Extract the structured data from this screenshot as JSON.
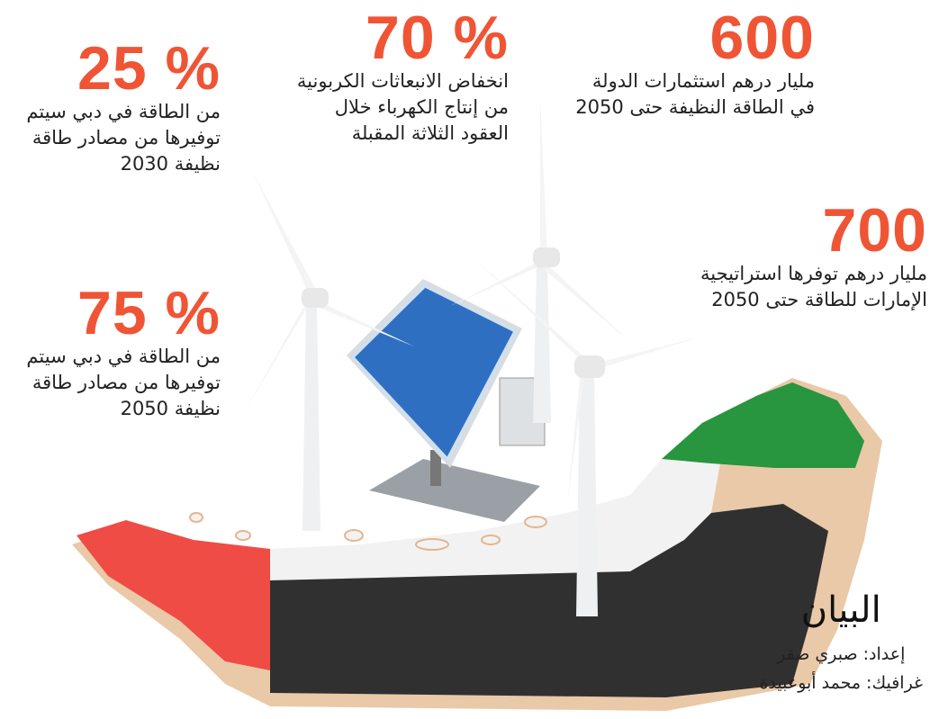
{
  "stats": [
    {
      "number": "% 25",
      "lines": [
        "من الطاقة في دبي سيتم",
        "توفيرها من مصادر طاقة",
        "نظيفة 2030"
      ]
    },
    {
      "number": "% 70",
      "lines": [
        "انخفاض الانبعاثات الكربونية",
        "من إنتاج الكهرباء خلال",
        "العقود الثلاثة المقبلة"
      ]
    },
    {
      "number": "600",
      "lines": [
        "مليار درهم استثمارات الدولة",
        "في الطاقة النظيفة حتى 2050"
      ]
    },
    {
      "number": "700",
      "lines": [
        "مليار درهم توفرها استراتيجية",
        "الإمارات للطاقة حتى 2050"
      ]
    },
    {
      "number": "% 75",
      "lines": [
        "من الطاقة في دبي سيتم",
        "توفيرها من مصادر طاقة",
        "نظيفة 2050"
      ]
    }
  ],
  "footer": {
    "logo": "البيان",
    "credits": [
      "إعداد: صبري صقر",
      "غرافيك: محمد أبوعبيدة"
    ]
  }
}
